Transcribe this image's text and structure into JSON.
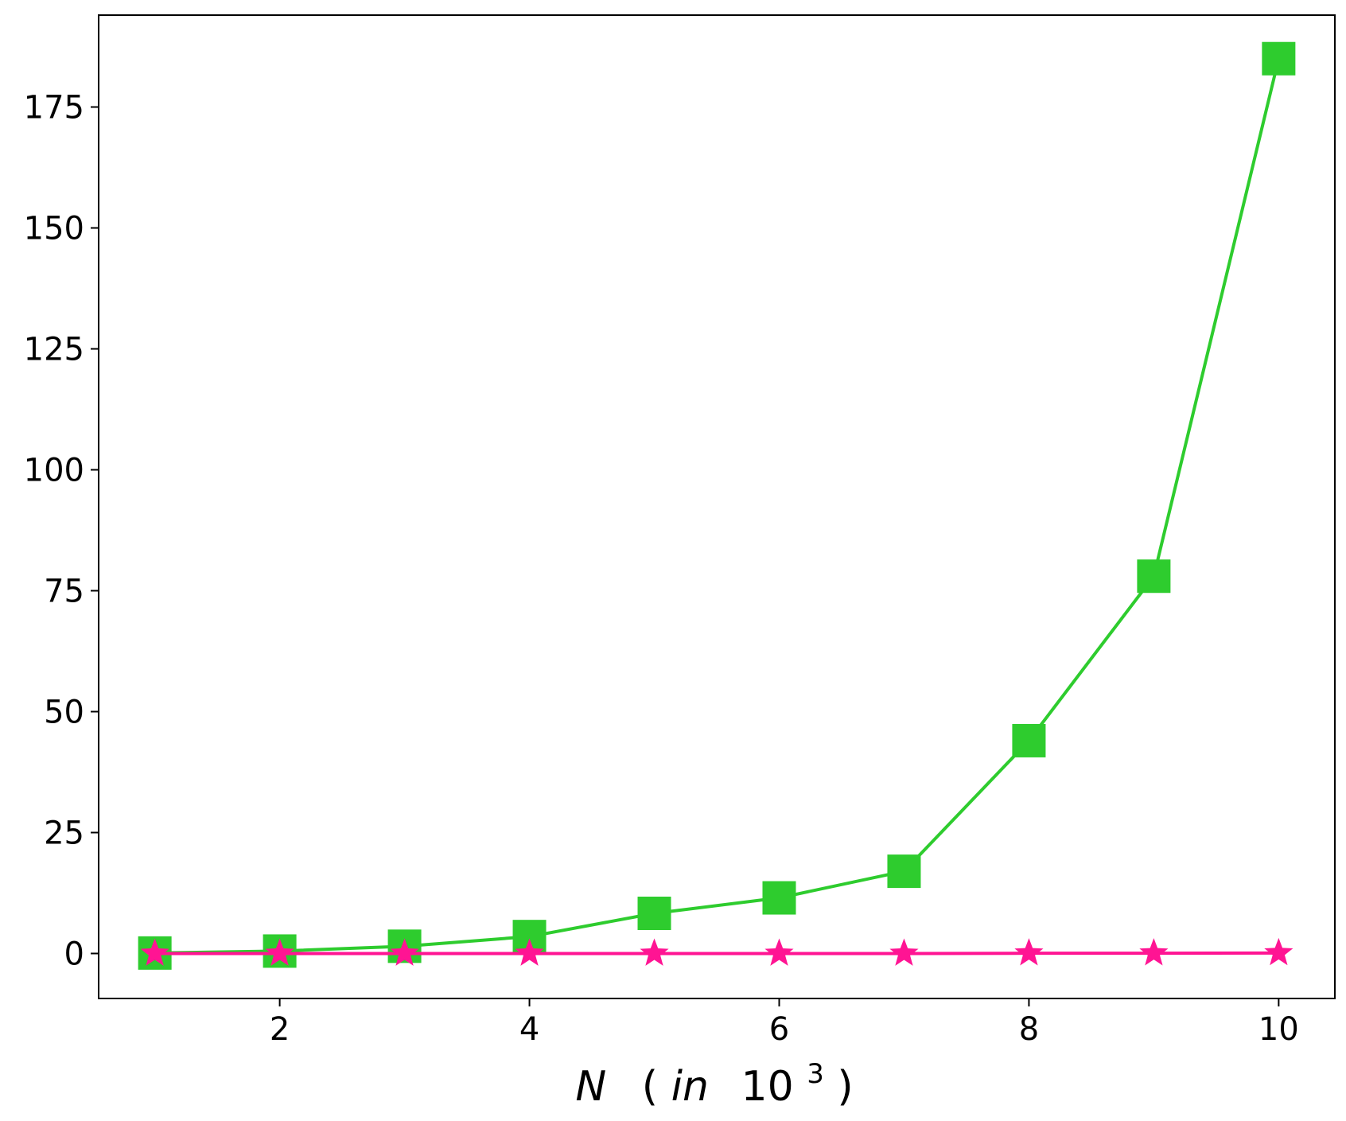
{
  "chart_data": {
    "type": "line",
    "title": "",
    "xlabel": {
      "variable": "N",
      "open": "(",
      "word": "in",
      "base": "10",
      "exponent": "3",
      "close": ")"
    },
    "ylabel": "",
    "xlim": [
      0.55,
      10.45
    ],
    "ylim": [
      -9.3,
      194
    ],
    "xticks": [
      2,
      4,
      6,
      8,
      10
    ],
    "yticks": [
      0,
      25,
      50,
      75,
      100,
      125,
      150,
      175
    ],
    "grid": false,
    "legend": "none",
    "x": [
      1,
      2,
      3,
      4,
      5,
      6,
      7,
      8,
      9,
      10
    ],
    "series": [
      {
        "marker": "square",
        "color": "#2ecc2e",
        "values": [
          0.1,
          0.5,
          1.5,
          3.5,
          8.3,
          11.5,
          17.0,
          44.0,
          78.0,
          185.0
        ]
      },
      {
        "marker": "star",
        "color": "#ff1493",
        "values": [
          0.0,
          0.0,
          0.0,
          0.0,
          0.0,
          0.0,
          0.0,
          0.05,
          0.05,
          0.1
        ]
      }
    ]
  }
}
